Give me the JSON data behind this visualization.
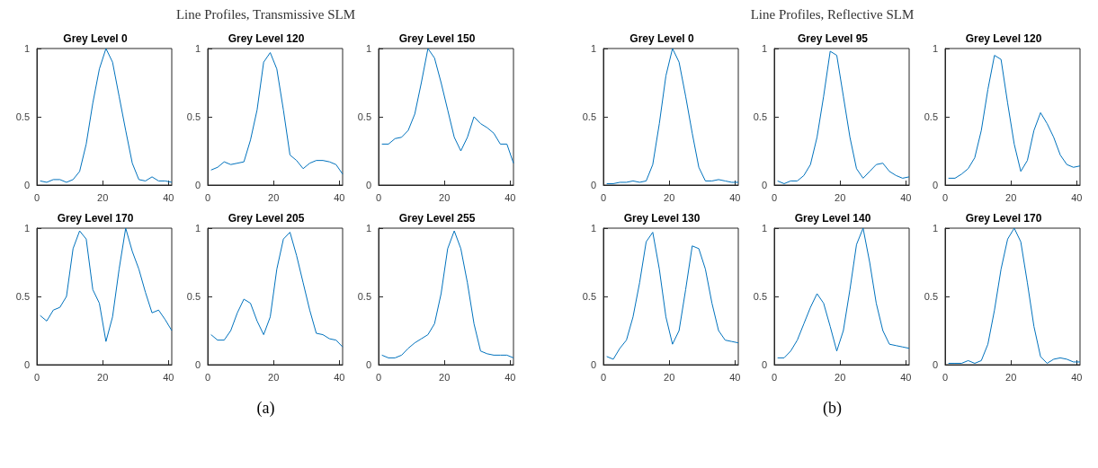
{
  "chart_data": [
    {
      "type": "line",
      "title": "Grey Level 0",
      "annotations": [
        "Line Profiles, Transmissive SLM",
        "(a)"
      ],
      "x": [
        1,
        3,
        5,
        7,
        9,
        11,
        13,
        15,
        17,
        19,
        21,
        23,
        25,
        27,
        29,
        31,
        33,
        35,
        37,
        39,
        41
      ],
      "series": [
        {
          "color": "#0072bd",
          "values": [
            0.03,
            0.02,
            0.04,
            0.04,
            0.02,
            0.04,
            0.1,
            0.3,
            0.6,
            0.85,
            1.0,
            0.9,
            0.65,
            0.4,
            0.16,
            0.04,
            0.03,
            0.06,
            0.03,
            0.03,
            0.02
          ]
        }
      ],
      "xlim": [
        0,
        41
      ],
      "xticks": [
        0,
        20,
        40
      ],
      "ylim": [
        0,
        1
      ],
      "yticks": [
        0,
        0.5,
        1
      ]
    },
    {
      "type": "line",
      "title": "Grey Level 120",
      "x": [
        1,
        3,
        5,
        7,
        9,
        11,
        13,
        15,
        17,
        19,
        21,
        23,
        25,
        27,
        29,
        31,
        33,
        35,
        37,
        39,
        41
      ],
      "series": [
        {
          "color": "#0072bd",
          "values": [
            0.11,
            0.13,
            0.17,
            0.15,
            0.16,
            0.17,
            0.33,
            0.55,
            0.9,
            0.97,
            0.85,
            0.55,
            0.22,
            0.18,
            0.12,
            0.16,
            0.18,
            0.18,
            0.17,
            0.15,
            0.08
          ]
        }
      ],
      "xlim": [
        0,
        41
      ],
      "xticks": [
        0,
        20,
        40
      ],
      "ylim": [
        0,
        1
      ],
      "yticks": [
        0,
        0.5,
        1
      ]
    },
    {
      "type": "line",
      "title": "Grey Level 150",
      "x": [
        1,
        3,
        5,
        7,
        9,
        11,
        13,
        15,
        17,
        19,
        21,
        23,
        25,
        27,
        29,
        31,
        33,
        35,
        37,
        39,
        41
      ],
      "series": [
        {
          "color": "#0072bd",
          "values": [
            0.3,
            0.3,
            0.34,
            0.35,
            0.4,
            0.52,
            0.75,
            1.0,
            0.93,
            0.75,
            0.55,
            0.35,
            0.25,
            0.35,
            0.5,
            0.45,
            0.42,
            0.38,
            0.3,
            0.3,
            0.16
          ]
        }
      ],
      "xlim": [
        0,
        41
      ],
      "xticks": [
        0,
        20,
        40
      ],
      "ylim": [
        0,
        1
      ],
      "yticks": [
        0,
        0.5,
        1
      ]
    },
    {
      "type": "line",
      "title": "Grey Level 170",
      "x": [
        1,
        3,
        5,
        7,
        9,
        11,
        13,
        15,
        17,
        19,
        21,
        23,
        25,
        27,
        29,
        31,
        33,
        35,
        37,
        39,
        41
      ],
      "series": [
        {
          "color": "#0072bd",
          "values": [
            0.36,
            0.32,
            0.4,
            0.42,
            0.5,
            0.85,
            0.98,
            0.92,
            0.55,
            0.45,
            0.17,
            0.35,
            0.7,
            1.0,
            0.83,
            0.7,
            0.53,
            0.38,
            0.4,
            0.33,
            0.25
          ]
        }
      ],
      "xlim": [
        0,
        41
      ],
      "xticks": [
        0,
        20,
        40
      ],
      "ylim": [
        0,
        1
      ],
      "yticks": [
        0,
        0.5,
        1
      ]
    },
    {
      "type": "line",
      "title": "Grey Level 205",
      "x": [
        1,
        3,
        5,
        7,
        9,
        11,
        13,
        15,
        17,
        19,
        21,
        23,
        25,
        27,
        29,
        31,
        33,
        35,
        37,
        39,
        41
      ],
      "series": [
        {
          "color": "#0072bd",
          "values": [
            0.22,
            0.18,
            0.18,
            0.25,
            0.38,
            0.48,
            0.45,
            0.32,
            0.22,
            0.35,
            0.7,
            0.92,
            0.97,
            0.8,
            0.6,
            0.4,
            0.23,
            0.22,
            0.19,
            0.18,
            0.13
          ]
        }
      ],
      "xlim": [
        0,
        41
      ],
      "xticks": [
        0,
        20,
        40
      ],
      "ylim": [
        0,
        1
      ],
      "yticks": [
        0,
        0.5,
        1
      ]
    },
    {
      "type": "line",
      "title": "Grey Level 255",
      "x": [
        1,
        3,
        5,
        7,
        9,
        11,
        13,
        15,
        17,
        19,
        21,
        23,
        25,
        27,
        29,
        31,
        33,
        35,
        37,
        39,
        41
      ],
      "series": [
        {
          "color": "#0072bd",
          "values": [
            0.07,
            0.05,
            0.05,
            0.07,
            0.12,
            0.16,
            0.19,
            0.22,
            0.3,
            0.52,
            0.85,
            0.98,
            0.85,
            0.6,
            0.3,
            0.1,
            0.08,
            0.07,
            0.07,
            0.07,
            0.05
          ]
        }
      ],
      "xlim": [
        0,
        41
      ],
      "xticks": [
        0,
        20,
        40
      ],
      "ylim": [
        0,
        1
      ],
      "yticks": [
        0,
        0.5,
        1
      ]
    },
    {
      "type": "line",
      "title": "Grey Level 0",
      "annotations": [
        "Line Profiles, Reflective SLM",
        "(b)"
      ],
      "x": [
        1,
        3,
        5,
        7,
        9,
        11,
        13,
        15,
        17,
        19,
        21,
        23,
        25,
        27,
        29,
        31,
        33,
        35,
        37,
        39,
        41
      ],
      "series": [
        {
          "color": "#0072bd",
          "values": [
            0.01,
            0.01,
            0.02,
            0.02,
            0.03,
            0.02,
            0.03,
            0.15,
            0.45,
            0.8,
            1.0,
            0.9,
            0.65,
            0.38,
            0.13,
            0.03,
            0.03,
            0.04,
            0.03,
            0.02,
            0.02
          ]
        }
      ],
      "xlim": [
        0,
        41
      ],
      "xticks": [
        0,
        20,
        40
      ],
      "ylim": [
        0,
        1
      ],
      "yticks": [
        0,
        0.5,
        1
      ]
    },
    {
      "type": "line",
      "title": "Grey Level 95",
      "x": [
        1,
        3,
        5,
        7,
        9,
        11,
        13,
        15,
        17,
        19,
        21,
        23,
        25,
        27,
        29,
        31,
        33,
        35,
        37,
        39,
        41
      ],
      "series": [
        {
          "color": "#0072bd",
          "values": [
            0.03,
            0.01,
            0.03,
            0.03,
            0.07,
            0.15,
            0.35,
            0.65,
            0.98,
            0.95,
            0.65,
            0.35,
            0.12,
            0.05,
            0.1,
            0.15,
            0.16,
            0.1,
            0.07,
            0.05,
            0.06
          ]
        }
      ],
      "xlim": [
        0,
        41
      ],
      "xticks": [
        0,
        20,
        40
      ],
      "ylim": [
        0,
        1
      ],
      "yticks": [
        0,
        0.5,
        1
      ]
    },
    {
      "type": "line",
      "title": "Grey Level 120",
      "x": [
        1,
        3,
        5,
        7,
        9,
        11,
        13,
        15,
        17,
        19,
        21,
        23,
        25,
        27,
        29,
        31,
        33,
        35,
        37,
        39,
        41
      ],
      "series": [
        {
          "color": "#0072bd",
          "values": [
            0.05,
            0.05,
            0.08,
            0.12,
            0.2,
            0.4,
            0.7,
            0.95,
            0.92,
            0.6,
            0.3,
            0.1,
            0.18,
            0.4,
            0.53,
            0.45,
            0.35,
            0.22,
            0.15,
            0.13,
            0.14
          ]
        }
      ],
      "xlim": [
        0,
        41
      ],
      "xticks": [
        0,
        20,
        40
      ],
      "ylim": [
        0,
        1
      ],
      "yticks": [
        0,
        0.5,
        1
      ]
    },
    {
      "type": "line",
      "title": "Grey Level 130",
      "x": [
        1,
        3,
        5,
        7,
        9,
        11,
        13,
        15,
        17,
        19,
        21,
        23,
        25,
        27,
        29,
        31,
        33,
        35,
        37,
        39,
        41
      ],
      "series": [
        {
          "color": "#0072bd",
          "values": [
            0.06,
            0.04,
            0.12,
            0.18,
            0.35,
            0.6,
            0.9,
            0.97,
            0.7,
            0.35,
            0.15,
            0.25,
            0.55,
            0.87,
            0.85,
            0.7,
            0.45,
            0.25,
            0.18,
            0.17,
            0.16
          ]
        }
      ],
      "xlim": [
        0,
        41
      ],
      "xticks": [
        0,
        20,
        40
      ],
      "ylim": [
        0,
        1
      ],
      "yticks": [
        0,
        0.5,
        1
      ]
    },
    {
      "type": "line",
      "title": "Grey Level 140",
      "x": [
        1,
        3,
        5,
        7,
        9,
        11,
        13,
        15,
        17,
        19,
        21,
        23,
        25,
        27,
        29,
        31,
        33,
        35,
        37,
        39,
        41
      ],
      "series": [
        {
          "color": "#0072bd",
          "values": [
            0.05,
            0.05,
            0.1,
            0.18,
            0.3,
            0.42,
            0.52,
            0.45,
            0.28,
            0.1,
            0.25,
            0.55,
            0.88,
            1.0,
            0.75,
            0.45,
            0.25,
            0.15,
            0.14,
            0.13,
            0.12
          ]
        }
      ],
      "xlim": [
        0,
        41
      ],
      "xticks": [
        0,
        20,
        40
      ],
      "ylim": [
        0,
        1
      ],
      "yticks": [
        0,
        0.5,
        1
      ]
    },
    {
      "type": "line",
      "title": "Grey Level 170",
      "x": [
        1,
        3,
        5,
        7,
        9,
        11,
        13,
        15,
        17,
        19,
        21,
        23,
        25,
        27,
        29,
        31,
        33,
        35,
        37,
        39,
        41
      ],
      "series": [
        {
          "color": "#0072bd",
          "values": [
            0.01,
            0.01,
            0.01,
            0.03,
            0.01,
            0.03,
            0.15,
            0.4,
            0.7,
            0.92,
            1.0,
            0.9,
            0.6,
            0.28,
            0.06,
            0.01,
            0.04,
            0.05,
            0.04,
            0.02,
            0.02
          ]
        }
      ],
      "xlim": [
        0,
        41
      ],
      "xticks": [
        0,
        20,
        40
      ],
      "ylim": [
        0,
        1
      ],
      "yticks": [
        0,
        0.5,
        1
      ]
    }
  ]
}
